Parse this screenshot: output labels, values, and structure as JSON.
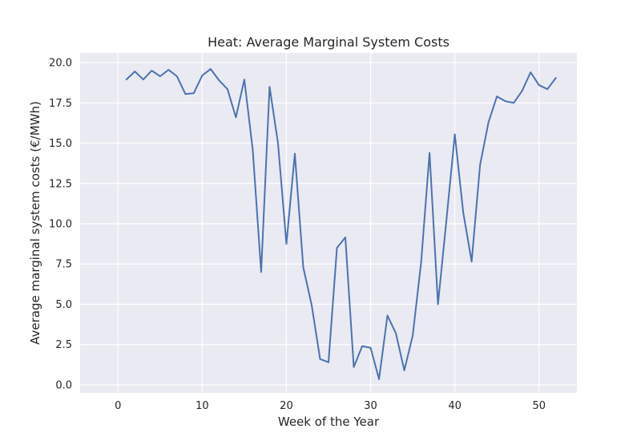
{
  "chart_data": {
    "type": "line",
    "title": "Heat: Average Marginal System Costs",
    "xlabel": "Week of the Year",
    "ylabel": "Average marginal system costs (€/MWh)",
    "xlim": [
      -4.5,
      54.5
    ],
    "ylim": [
      -0.5,
      20.6
    ],
    "xticks": [
      0,
      10,
      20,
      30,
      40,
      50
    ],
    "xtick_labels": [
      "0",
      "10",
      "20",
      "30",
      "40",
      "50"
    ],
    "yticks": [
      0,
      2.5,
      5,
      7.5,
      10,
      12.5,
      15,
      17.5,
      20
    ],
    "ytick_labels": [
      "0.0",
      "2.5",
      "5.0",
      "7.5",
      "10.0",
      "12.5",
      "15.0",
      "17.5",
      "20.0"
    ],
    "grid": true,
    "background": "#eaeaf2",
    "grid_color": "#ffffff",
    "line_color": "#4c72b0",
    "series": [
      {
        "x": [
          1,
          2,
          3,
          4,
          5,
          6,
          7,
          8,
          9,
          10,
          11,
          12,
          13,
          14,
          15,
          16,
          17,
          18,
          19,
          20,
          21,
          22,
          23,
          24,
          25,
          26,
          27,
          28,
          29,
          30,
          31,
          32,
          33,
          34,
          35,
          36,
          37,
          38,
          39,
          40,
          41,
          42,
          43,
          44,
          45,
          46,
          47,
          48,
          49,
          50,
          51,
          52
        ],
        "values": [
          18.95,
          19.45,
          18.95,
          19.5,
          19.15,
          19.55,
          19.15,
          18.05,
          18.1,
          19.2,
          19.6,
          18.9,
          18.35,
          16.6,
          18.95,
          14.6,
          7.0,
          18.5,
          15.0,
          8.75,
          14.35,
          7.3,
          4.95,
          1.6,
          1.4,
          8.5,
          9.15,
          1.1,
          2.4,
          2.3,
          0.35,
          4.3,
          3.2,
          0.9,
          3.05,
          7.6,
          14.4,
          5.0,
          10.2,
          15.55,
          10.7,
          7.65,
          13.65,
          16.3,
          17.9,
          17.6,
          17.5,
          18.25,
          19.4,
          18.6,
          18.35,
          19.05
        ]
      }
    ]
  }
}
